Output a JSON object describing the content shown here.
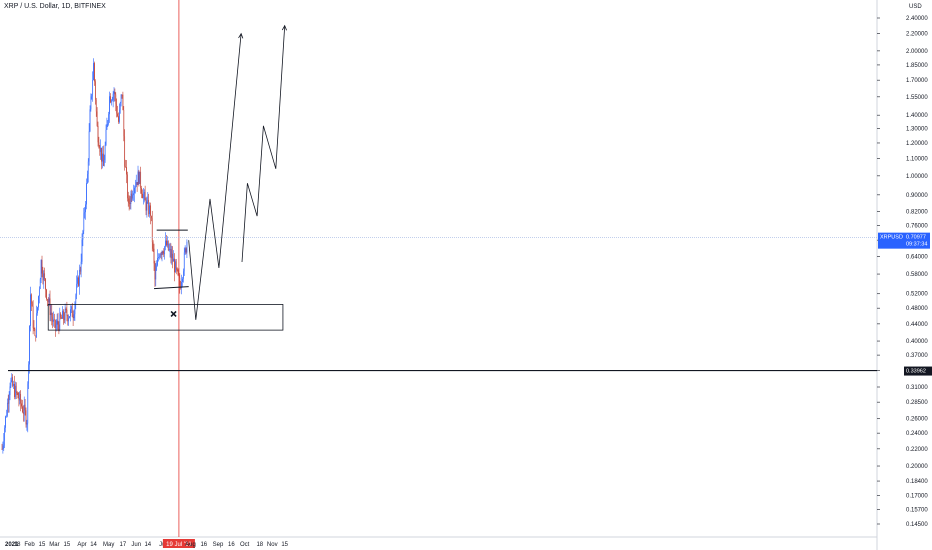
{
  "chart_data": {
    "type": "candlestick",
    "title": "XRP / U.S. Dollar, 1D, BITFINEX",
    "y_unit": "USD",
    "y_scale": "log",
    "ylim": [
      0.136,
      2.5
    ],
    "y_ticks": [
      "2.40000",
      "2.20000",
      "2.00000",
      "1.85000",
      "1.70000",
      "1.55000",
      "1.40000",
      "1.30000",
      "1.20000",
      "1.10000",
      "1.00000",
      "0.90000",
      "0.82000",
      "0.76000",
      "0.70000",
      "0.64000",
      "0.58000",
      "0.52000",
      "0.48000",
      "0.44000",
      "0.40000",
      "0.37000",
      "0.34000",
      "0.31000",
      "0.28500",
      "0.26000",
      "0.24000",
      "0.22000",
      "0.20000",
      "0.18400",
      "0.17000",
      "0.15700",
      "0.14500"
    ],
    "x_ticks": [
      "2021",
      "18",
      "Feb",
      "15",
      "Mar",
      "15",
      "Apr",
      "14",
      "May",
      "17",
      "Jun",
      "14",
      "Jul",
      "19 Jul '21",
      "Aug",
      "16",
      "Sep",
      "16",
      "Oct",
      "18",
      "Nov",
      "15"
    ],
    "price_labels": {
      "symbol": "XRPUSD",
      "last": "0.70977",
      "countdown": "09:37:34",
      "level": "0.33962"
    },
    "ohlc_anchors": [
      {
        "date": "2021-01-01",
        "close": 0.22
      },
      {
        "date": "2021-01-10",
        "close": 0.32
      },
      {
        "date": "2021-01-20",
        "close": 0.29
      },
      {
        "date": "2021-01-29",
        "close": 0.26
      },
      {
        "date": "2021-02-02",
        "close": 0.52
      },
      {
        "date": "2021-02-07",
        "close": 0.4
      },
      {
        "date": "2021-02-14",
        "close": 0.62
      },
      {
        "date": "2021-02-21",
        "close": 0.51
      },
      {
        "date": "2021-03-01",
        "close": 0.43
      },
      {
        "date": "2021-03-12",
        "close": 0.46
      },
      {
        "date": "2021-03-22",
        "close": 0.47
      },
      {
        "date": "2021-03-30",
        "close": 0.6
      },
      {
        "date": "2021-04-03",
        "close": 0.78
      },
      {
        "date": "2021-04-07",
        "close": 1.0
      },
      {
        "date": "2021-04-10",
        "close": 1.4
      },
      {
        "date": "2021-04-14",
        "close": 1.85
      },
      {
        "date": "2021-04-18",
        "close": 1.3
      },
      {
        "date": "2021-04-25",
        "close": 1.05
      },
      {
        "date": "2021-05-02",
        "close": 1.55
      },
      {
        "date": "2021-05-07",
        "close": 1.6
      },
      {
        "date": "2021-05-12",
        "close": 1.35
      },
      {
        "date": "2021-05-16",
        "close": 1.6
      },
      {
        "date": "2021-05-19",
        "close": 1.1
      },
      {
        "date": "2021-05-23",
        "close": 0.85
      },
      {
        "date": "2021-05-29",
        "close": 0.95
      },
      {
        "date": "2021-06-04",
        "close": 1.0
      },
      {
        "date": "2021-06-11",
        "close": 0.86
      },
      {
        "date": "2021-06-17",
        "close": 0.82
      },
      {
        "date": "2021-06-22",
        "close": 0.56
      },
      {
        "date": "2021-06-27",
        "close": 0.66
      },
      {
        "date": "2021-07-05",
        "close": 0.68
      },
      {
        "date": "2021-07-13",
        "close": 0.62
      },
      {
        "date": "2021-07-20",
        "close": 0.54
      },
      {
        "date": "2021-07-24",
        "close": 0.61
      },
      {
        "date": "2021-07-28",
        "close": 0.7
      }
    ],
    "annotations": {
      "vertical_line_date": "2021-07-19",
      "horizontal_line_price": 0.33962,
      "rectangle_zone": {
        "date_start": "2021-02-22",
        "date_end": "2021-11-13",
        "price_top": 0.49,
        "price_bottom": 0.425
      },
      "range_resistance": {
        "date_start": "2021-06-24",
        "date_end": "2021-07-29",
        "price": 0.74
      },
      "range_support": {
        "date_start": "2021-06-21",
        "date_end": "2021-07-30",
        "price": 0.535
      },
      "x_marker": {
        "date": "2021-07-13",
        "price": 0.465
      },
      "projection_path_1": [
        {
          "date": "2021-07-30",
          "price": 0.7
        },
        {
          "date": "2021-08-07",
          "price": 0.45
        },
        {
          "date": "2021-08-23",
          "price": 0.88
        },
        {
          "date": "2021-09-02",
          "price": 0.6
        },
        {
          "date": "2021-09-27",
          "price": 2.2
        }
      ],
      "projection_path_2": [
        {
          "date": "2021-09-28",
          "price": 0.62
        },
        {
          "date": "2021-10-04",
          "price": 0.96
        },
        {
          "date": "2021-10-15",
          "price": 0.8
        },
        {
          "date": "2021-10-22",
          "price": 1.32
        },
        {
          "date": "2021-11-05",
          "price": 1.04
        },
        {
          "date": "2021-11-15",
          "price": 2.3
        }
      ]
    },
    "colors": {
      "up": "#2962ff",
      "down": "#c0392b",
      "vertical_line": "#e53935",
      "price_tag": "#2962ff",
      "annotation": "#131722"
    },
    "grid": false
  }
}
